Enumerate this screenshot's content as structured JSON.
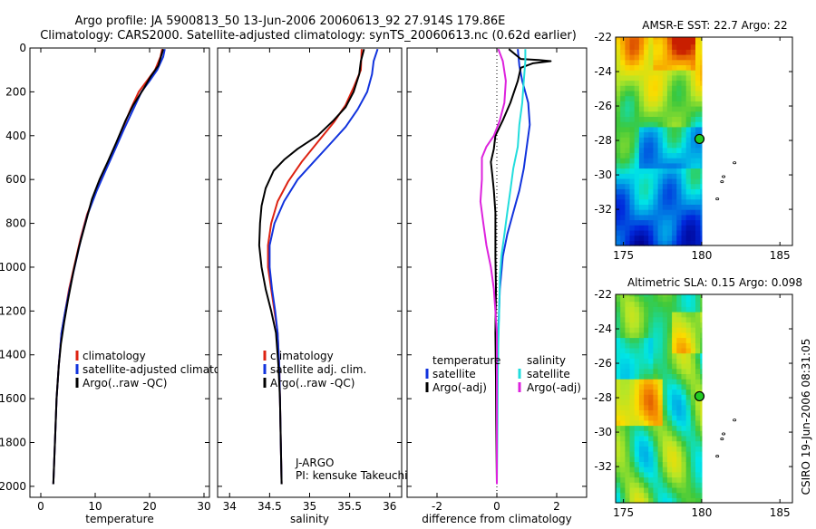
{
  "header": {
    "title_line1": "Argo profile: JA 5900813_50 13-Jun-2006 20060613_92 27.914S 179.86E",
    "title_line2": "Climatology: CARS2000. Satellite-adjusted climatology: synTS_20060613.nc (0.62d earlier)"
  },
  "side_stamp": "CSIRO 19-Jun-2006 08:31:05",
  "colors": {
    "climatology": "#dd2211",
    "satellite": "#1133dd",
    "argo": "#000000",
    "cyan": "#22dddd",
    "magenta": "#dd22dd"
  },
  "chart_data": [
    {
      "id": "temperature",
      "type": "line",
      "xlabel": "temperature",
      "xlim": [
        -2,
        31
      ],
      "ylim": [
        0,
        2050
      ],
      "y_inverted": true,
      "xticks": [
        "0",
        "10",
        "20",
        "30"
      ],
      "xtick_values": [
        0,
        10,
        20,
        30
      ],
      "yticks": [
        "0",
        "200",
        "400",
        "600",
        "800",
        "1000",
        "1200",
        "1400",
        "1600",
        "1800",
        "2000"
      ],
      "ytick_values": [
        0,
        200,
        400,
        600,
        800,
        1000,
        1200,
        1400,
        1600,
        1800,
        2000
      ],
      "legend": {
        "placement": "lower-right",
        "entries": [
          "climatology",
          "satellite-adjusted climatology",
          "Argo(..raw -QC)"
        ]
      },
      "series": [
        {
          "name": "climatology",
          "color": "#dd2211",
          "points": [
            [
              22.3,
              5
            ],
            [
              22.0,
              40
            ],
            [
              21.0,
              100
            ],
            [
              19.5,
              150
            ],
            [
              18.0,
              200
            ],
            [
              16.5,
              280
            ],
            [
              15.0,
              370
            ],
            [
              13.5,
              460
            ],
            [
              11.8,
              560
            ],
            [
              10.2,
              650
            ],
            [
              8.5,
              760
            ],
            [
              7.3,
              870
            ],
            [
              6.2,
              990
            ],
            [
              5.2,
              1100
            ],
            [
              4.5,
              1200
            ],
            [
              3.8,
              1300
            ],
            [
              3.3,
              1450
            ],
            [
              2.9,
              1600
            ],
            [
              2.6,
              1800
            ],
            [
              2.3,
              1990
            ]
          ]
        },
        {
          "name": "satellite-adjusted climatology",
          "color": "#1133dd",
          "points": [
            [
              22.8,
              5
            ],
            [
              22.5,
              40
            ],
            [
              21.4,
              100
            ],
            [
              20.0,
              150
            ],
            [
              18.5,
              200
            ],
            [
              17.0,
              280
            ],
            [
              15.3,
              370
            ],
            [
              13.7,
              460
            ],
            [
              11.9,
              560
            ],
            [
              10.3,
              650
            ],
            [
              8.6,
              760
            ],
            [
              7.4,
              870
            ],
            [
              6.3,
              990
            ],
            [
              5.3,
              1100
            ],
            [
              4.5,
              1200
            ],
            [
              3.8,
              1300
            ],
            [
              3.3,
              1450
            ],
            [
              2.9,
              1600
            ],
            [
              2.6,
              1800
            ],
            [
              2.3,
              1990
            ]
          ]
        },
        {
          "name": "Argo(..raw -QC)",
          "color": "#000000",
          "points": [
            [
              22.5,
              5
            ],
            [
              22.2,
              30
            ],
            [
              21.6,
              80
            ],
            [
              20.2,
              130
            ],
            [
              18.8,
              190
            ],
            [
              17.0,
              260
            ],
            [
              15.6,
              330
            ],
            [
              13.9,
              430
            ],
            [
              12.3,
              520
            ],
            [
              10.8,
              600
            ],
            [
              9.4,
              690
            ],
            [
              8.2,
              800
            ],
            [
              7.0,
              910
            ],
            [
              6.0,
              1020
            ],
            [
              5.0,
              1150
            ],
            [
              4.3,
              1250
            ],
            [
              3.7,
              1350
            ],
            [
              3.3,
              1450
            ],
            [
              2.9,
              1600
            ],
            [
              2.6,
              1800
            ],
            [
              2.3,
              1990
            ]
          ]
        }
      ]
    },
    {
      "id": "salinity",
      "type": "line",
      "xlabel": "salinity",
      "xlim": [
        33.85,
        36.15
      ],
      "ylim": [
        0,
        2050
      ],
      "y_inverted": true,
      "xticks": [
        "34",
        "34.5",
        "35",
        "35.5",
        "36"
      ],
      "xtick_values": [
        34,
        34.5,
        35,
        35.5,
        36
      ],
      "legend": {
        "placement": "lower-right",
        "entries": [
          "climatology",
          "satellite adj. clim.",
          "Argo(..raw -QC)"
        ]
      },
      "annotations": [
        "J-ARGO",
        "PI: kensuke Takeuchi"
      ],
      "series": [
        {
          "name": "climatology",
          "color": "#dd2211",
          "points": [
            [
              35.65,
              5
            ],
            [
              35.64,
              100
            ],
            [
              35.55,
              180
            ],
            [
              35.45,
              260
            ],
            [
              35.3,
              340
            ],
            [
              35.1,
              430
            ],
            [
              34.9,
              520
            ],
            [
              34.73,
              610
            ],
            [
              34.6,
              700
            ],
            [
              34.52,
              800
            ],
            [
              34.48,
              900
            ],
            [
              34.48,
              1000
            ],
            [
              34.52,
              1100
            ],
            [
              34.56,
              1200
            ],
            [
              34.6,
              1300
            ],
            [
              34.62,
              1450
            ],
            [
              34.63,
              1600
            ],
            [
              34.64,
              1800
            ],
            [
              34.65,
              1990
            ]
          ]
        },
        {
          "name": "satellite adj. clim.",
          "color": "#1133dd",
          "points": [
            [
              35.85,
              5
            ],
            [
              35.8,
              60
            ],
            [
              35.78,
              120
            ],
            [
              35.72,
              200
            ],
            [
              35.6,
              280
            ],
            [
              35.45,
              360
            ],
            [
              35.25,
              440
            ],
            [
              35.05,
              520
            ],
            [
              34.85,
              600
            ],
            [
              34.68,
              700
            ],
            [
              34.56,
              800
            ],
            [
              34.5,
              900
            ],
            [
              34.5,
              1000
            ],
            [
              34.53,
              1100
            ],
            [
              34.57,
              1200
            ],
            [
              34.6,
              1300
            ],
            [
              34.62,
              1450
            ],
            [
              34.63,
              1600
            ],
            [
              34.64,
              1800
            ],
            [
              34.65,
              1990
            ]
          ]
        },
        {
          "name": "Argo(..raw -QC)",
          "color": "#000000",
          "points": [
            [
              35.68,
              5
            ],
            [
              35.64,
              60
            ],
            [
              35.62,
              120
            ],
            [
              35.55,
              200
            ],
            [
              35.45,
              270
            ],
            [
              35.3,
              330
            ],
            [
              35.1,
              400
            ],
            [
              34.85,
              460
            ],
            [
              34.68,
              510
            ],
            [
              34.55,
              560
            ],
            [
              34.45,
              640
            ],
            [
              34.4,
              720
            ],
            [
              34.38,
              800
            ],
            [
              34.37,
              900
            ],
            [
              34.4,
              1000
            ],
            [
              34.45,
              1100
            ],
            [
              34.52,
              1200
            ],
            [
              34.58,
              1300
            ],
            [
              34.61,
              1450
            ],
            [
              34.63,
              1600
            ],
            [
              34.64,
              1800
            ],
            [
              34.65,
              1990
            ]
          ]
        }
      ]
    },
    {
      "id": "difference",
      "type": "line",
      "xlabel": "difference from climatology",
      "xlim": [
        -3.0,
        3.0
      ],
      "ylim": [
        0,
        2050
      ],
      "y_inverted": true,
      "xticks": [
        "-2",
        "0",
        "2"
      ],
      "xtick_values": [
        -2,
        0,
        2
      ],
      "legend": {
        "placement": "lower-right",
        "col1": [
          "temperature",
          "satellite",
          "Argo(-adj)"
        ],
        "col2": [
          "salinity",
          "satellite",
          "Argo(-adj)"
        ]
      },
      "series": [
        {
          "name": "temperature satellite",
          "color": "#1133dd",
          "points": [
            [
              0.7,
              5
            ],
            [
              0.75,
              80
            ],
            [
              0.85,
              150
            ],
            [
              1.05,
              250
            ],
            [
              1.1,
              350
            ],
            [
              1.0,
              450
            ],
            [
              0.9,
              550
            ],
            [
              0.75,
              650
            ],
            [
              0.55,
              750
            ],
            [
              0.35,
              850
            ],
            [
              0.2,
              950
            ],
            [
              0.1,
              1100
            ],
            [
              0.05,
              1300
            ],
            [
              0.02,
              1500
            ],
            [
              0.0,
              1700
            ],
            [
              0.0,
              1990
            ]
          ]
        },
        {
          "name": "temperature Argo(-adj)",
          "color": "#000000",
          "points": [
            [
              0.4,
              5
            ],
            [
              0.8,
              50
            ],
            [
              1.4,
              55
            ],
            [
              1.8,
              60
            ],
            [
              1.2,
              70
            ],
            [
              0.8,
              90
            ],
            [
              0.7,
              150
            ],
            [
              0.45,
              250
            ],
            [
              0.2,
              330
            ],
            [
              -0.05,
              400
            ],
            [
              -0.1,
              460
            ],
            [
              -0.2,
              520
            ],
            [
              -0.15,
              580
            ],
            [
              -0.1,
              650
            ],
            [
              -0.05,
              750
            ],
            [
              -0.05,
              850
            ],
            [
              -0.05,
              950
            ],
            [
              -0.03,
              1100
            ],
            [
              -0.05,
              1300
            ],
            [
              -0.03,
              1500
            ],
            [
              -0.02,
              1700
            ],
            [
              0.0,
              1990
            ]
          ]
        },
        {
          "name": "salinity satellite",
          "color": "#22dddd",
          "points": [
            [
              0.95,
              5
            ],
            [
              0.95,
              60
            ],
            [
              0.9,
              150
            ],
            [
              0.85,
              250
            ],
            [
              0.75,
              350
            ],
            [
              0.7,
              450
            ],
            [
              0.55,
              550
            ],
            [
              0.45,
              650
            ],
            [
              0.35,
              750
            ],
            [
              0.25,
              850
            ],
            [
              0.15,
              950
            ],
            [
              0.1,
              1050
            ],
            [
              0.08,
              1200
            ],
            [
              0.05,
              1350
            ],
            [
              0.03,
              1500
            ],
            [
              0.02,
              1700
            ],
            [
              0.0,
              1990
            ]
          ]
        },
        {
          "name": "salinity Argo(-adj)",
          "color": "#dd22dd",
          "points": [
            [
              0.05,
              5
            ],
            [
              0.2,
              60
            ],
            [
              0.3,
              150
            ],
            [
              0.25,
              250
            ],
            [
              0.1,
              330
            ],
            [
              -0.1,
              400
            ],
            [
              -0.35,
              450
            ],
            [
              -0.5,
              500
            ],
            [
              -0.5,
              600
            ],
            [
              -0.55,
              700
            ],
            [
              -0.45,
              800
            ],
            [
              -0.35,
              900
            ],
            [
              -0.2,
              1000
            ],
            [
              -0.1,
              1100
            ],
            [
              -0.05,
              1200
            ],
            [
              0.0,
              1300
            ],
            [
              0.0,
              1500
            ],
            [
              0.0,
              1700
            ],
            [
              0.0,
              1990
            ]
          ]
        }
      ]
    },
    {
      "id": "sst-map",
      "type": "heatmap",
      "title": "AMSR-E SST: 22.7 Argo: 22",
      "xlim": [
        174.5,
        185.8
      ],
      "ylim": [
        -34.1,
        -22
      ],
      "xticks": [
        "175",
        "180",
        "185"
      ],
      "xtick_values": [
        175,
        180,
        185
      ],
      "yticks": [
        "-22",
        "-24",
        "-26",
        "-28",
        "-30",
        "-32"
      ],
      "ytick_values": [
        -22,
        -24,
        -26,
        -28,
        -30,
        -32
      ],
      "data_extent_lon": [
        174.5,
        180
      ],
      "marker": {
        "lon": 179.86,
        "lat": -27.914
      },
      "islands": [
        [
          182.1,
          -29.3
        ],
        [
          181.4,
          -30.1
        ],
        [
          181.3,
          -30.4
        ],
        [
          181.0,
          -31.4
        ]
      ]
    },
    {
      "id": "sla-map",
      "type": "heatmap",
      "title": "Altimetric SLA: 0.15 Argo: 0.098",
      "xlim": [
        174.5,
        185.8
      ],
      "ylim": [
        -34.1,
        -22
      ],
      "xticks": [
        "175",
        "180",
        "185"
      ],
      "xtick_values": [
        175,
        180,
        185
      ],
      "yticks": [
        "-22",
        "-24",
        "-26",
        "-28",
        "-30",
        "-32"
      ],
      "ytick_values": [
        -22,
        -24,
        -26,
        -28,
        -30,
        -32
      ],
      "data_extent_lon": [
        174.5,
        180
      ],
      "marker": {
        "lon": 179.86,
        "lat": -27.914
      },
      "islands": [
        [
          182.1,
          -29.3
        ],
        [
          181.4,
          -30.1
        ],
        [
          181.3,
          -30.4
        ],
        [
          181.0,
          -31.4
        ]
      ]
    }
  ]
}
